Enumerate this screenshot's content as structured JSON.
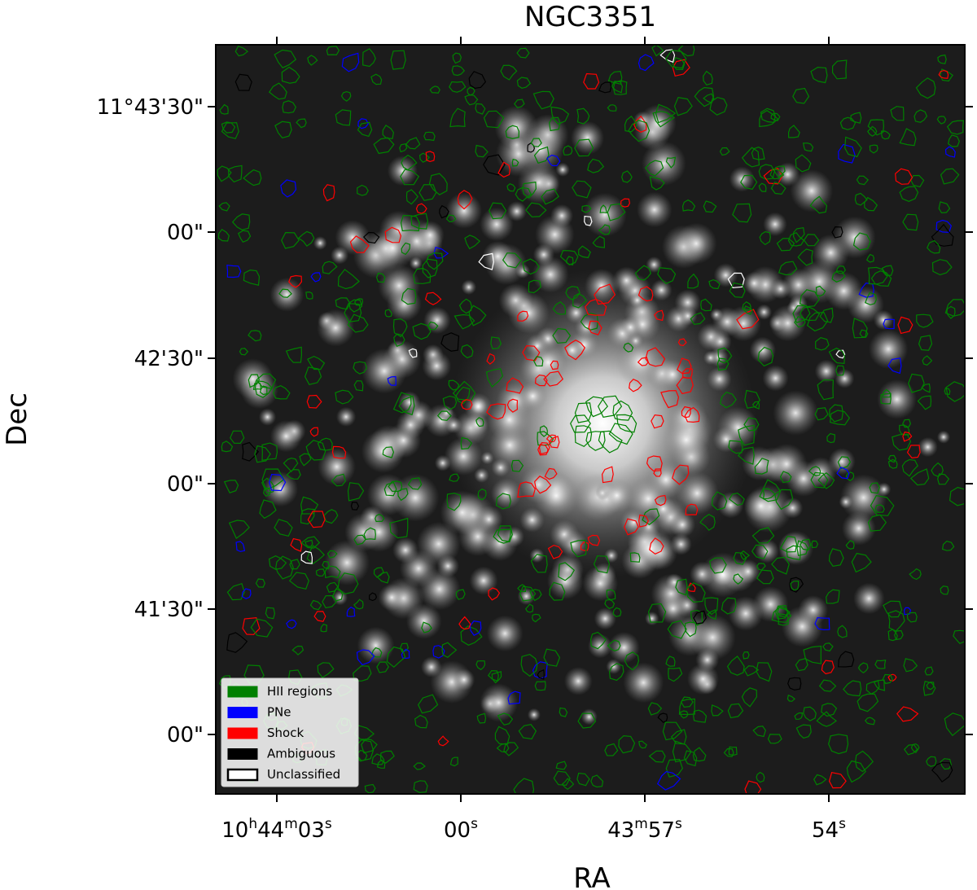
{
  "title": "NGC3351",
  "x_axis": {
    "label": "RA",
    "ticks": [
      [
        "10",
        "h",
        "44",
        "m",
        "03",
        "s"
      ],
      [
        "00",
        "s"
      ],
      [
        "43",
        "m",
        "57",
        "s"
      ],
      [
        "54",
        "s"
      ]
    ]
  },
  "y_axis": {
    "label": "Dec",
    "ticks": [
      "11°43'30\"",
      "00\"",
      "42'30\"",
      "00\"",
      "41'30\"",
      "00\""
    ]
  },
  "legend": [
    {
      "label": "HII regions",
      "color": "#008000"
    },
    {
      "label": "PNe",
      "color": "#0000ff"
    },
    {
      "label": "Shock",
      "color": "#ff0000"
    },
    {
      "label": "Ambiguous",
      "color": "#000000"
    },
    {
      "label": "Unclassified",
      "color": "#ffffff"
    }
  ]
}
